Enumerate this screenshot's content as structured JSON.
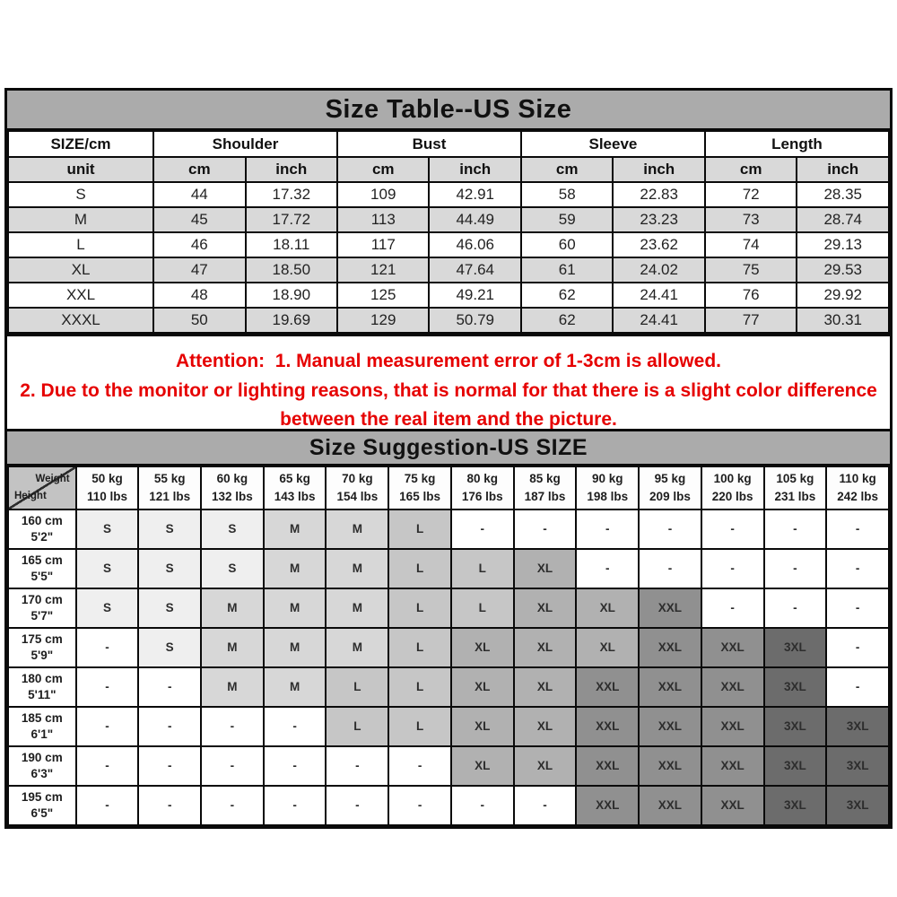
{
  "colors": {
    "title_bar": "#ababab",
    "subheader_row": "#d9d9d9",
    "attention_red": "#e60000",
    "grid_border": "#0a0a0a",
    "size_cell_colors": {
      "-": "#ffffff",
      "S": "#efefef",
      "M": "#d7d7d7",
      "L": "#c6c6c6",
      "XL": "#b1b1b1",
      "XXL": "#909090",
      "3XL": "#6c6c6c"
    }
  },
  "size_table": {
    "title": "Size Table--US Size",
    "corner_label": "SIZE/cm",
    "unit_label": "unit",
    "groups": [
      {
        "label": "Shoulder"
      },
      {
        "label": "Bust"
      },
      {
        "label": "Sleeve"
      },
      {
        "label": "Length"
      }
    ],
    "unit_cols": [
      "cm",
      "inch",
      "cm",
      "inch",
      "cm",
      "inch",
      "cm",
      "inch"
    ],
    "rows": [
      {
        "size": "S",
        "values": [
          "44",
          "17.32",
          "109",
          "42.91",
          "58",
          "22.83",
          "72",
          "28.35"
        ]
      },
      {
        "size": "M",
        "values": [
          "45",
          "17.72",
          "113",
          "44.49",
          "59",
          "23.23",
          "73",
          "28.74"
        ]
      },
      {
        "size": "L",
        "values": [
          "46",
          "18.11",
          "117",
          "46.06",
          "60",
          "23.62",
          "74",
          "29.13"
        ]
      },
      {
        "size": "XL",
        "values": [
          "47",
          "18.50",
          "121",
          "47.64",
          "61",
          "24.02",
          "75",
          "29.53"
        ]
      },
      {
        "size": "XXL",
        "values": [
          "48",
          "18.90",
          "125",
          "49.21",
          "62",
          "24.41",
          "76",
          "29.92"
        ]
      },
      {
        "size": "XXXL",
        "values": [
          "50",
          "19.69",
          "129",
          "50.79",
          "62",
          "24.41",
          "77",
          "30.31"
        ]
      }
    ]
  },
  "attention": {
    "line1": "Attention:  1. Manual measurement error of 1-3cm is allowed.",
    "line2": "2. Due to the monitor or lighting reasons, that is normal for that there is a slight color difference between the real item and the picture."
  },
  "suggestion_table": {
    "title": "Size Suggestion-US SIZE",
    "corner": {
      "top_right": "Weight",
      "bottom_left": "Height"
    },
    "weight_cols": [
      {
        "kg": "50 kg",
        "lbs": "110 lbs"
      },
      {
        "kg": "55 kg",
        "lbs": "121 lbs"
      },
      {
        "kg": "60 kg",
        "lbs": "132 lbs"
      },
      {
        "kg": "65 kg",
        "lbs": "143 lbs"
      },
      {
        "kg": "70 kg",
        "lbs": "154 lbs"
      },
      {
        "kg": "75 kg",
        "lbs": "165 lbs"
      },
      {
        "kg": "80 kg",
        "lbs": "176 lbs"
      },
      {
        "kg": "85 kg",
        "lbs": "187 lbs"
      },
      {
        "kg": "90 kg",
        "lbs": "198 lbs"
      },
      {
        "kg": "95 kg",
        "lbs": "209 lbs"
      },
      {
        "kg": "100 kg",
        "lbs": "220 lbs"
      },
      {
        "kg": "105 kg",
        "lbs": "231 lbs"
      },
      {
        "kg": "110 kg",
        "lbs": "242 lbs"
      }
    ],
    "rows": [
      {
        "cm": "160 cm",
        "ft": "5'2\"",
        "sizes": [
          "S",
          "S",
          "S",
          "M",
          "M",
          "L",
          "-",
          "-",
          "-",
          "-",
          "-",
          "-",
          "-"
        ]
      },
      {
        "cm": "165 cm",
        "ft": "5'5\"",
        "sizes": [
          "S",
          "S",
          "S",
          "M",
          "M",
          "L",
          "L",
          "XL",
          "-",
          "-",
          "-",
          "-",
          "-"
        ]
      },
      {
        "cm": "170 cm",
        "ft": "5'7\"",
        "sizes": [
          "S",
          "S",
          "M",
          "M",
          "M",
          "L",
          "L",
          "XL",
          "XL",
          "XXL",
          "-",
          "-",
          "-"
        ]
      },
      {
        "cm": "175 cm",
        "ft": "5'9\"",
        "sizes": [
          "-",
          "S",
          "M",
          "M",
          "M",
          "L",
          "XL",
          "XL",
          "XL",
          "XXL",
          "XXL",
          "3XL",
          "-"
        ]
      },
      {
        "cm": "180 cm",
        "ft": "5'11\"",
        "sizes": [
          "-",
          "-",
          "M",
          "M",
          "L",
          "L",
          "XL",
          "XL",
          "XXL",
          "XXL",
          "XXL",
          "3XL",
          "-"
        ]
      },
      {
        "cm": "185 cm",
        "ft": "6'1\"",
        "sizes": [
          "-",
          "-",
          "-",
          "-",
          "L",
          "L",
          "XL",
          "XL",
          "XXL",
          "XXL",
          "XXL",
          "3XL",
          "3XL"
        ]
      },
      {
        "cm": "190 cm",
        "ft": "6'3\"",
        "sizes": [
          "-",
          "-",
          "-",
          "-",
          "-",
          "-",
          "XL",
          "XL",
          "XXL",
          "XXL",
          "XXL",
          "3XL",
          "3XL"
        ]
      },
      {
        "cm": "195 cm",
        "ft": "6'5\"",
        "sizes": [
          "-",
          "-",
          "-",
          "-",
          "-",
          "-",
          "-",
          "-",
          "XXL",
          "XXL",
          "XXL",
          "3XL",
          "3XL"
        ]
      }
    ]
  }
}
